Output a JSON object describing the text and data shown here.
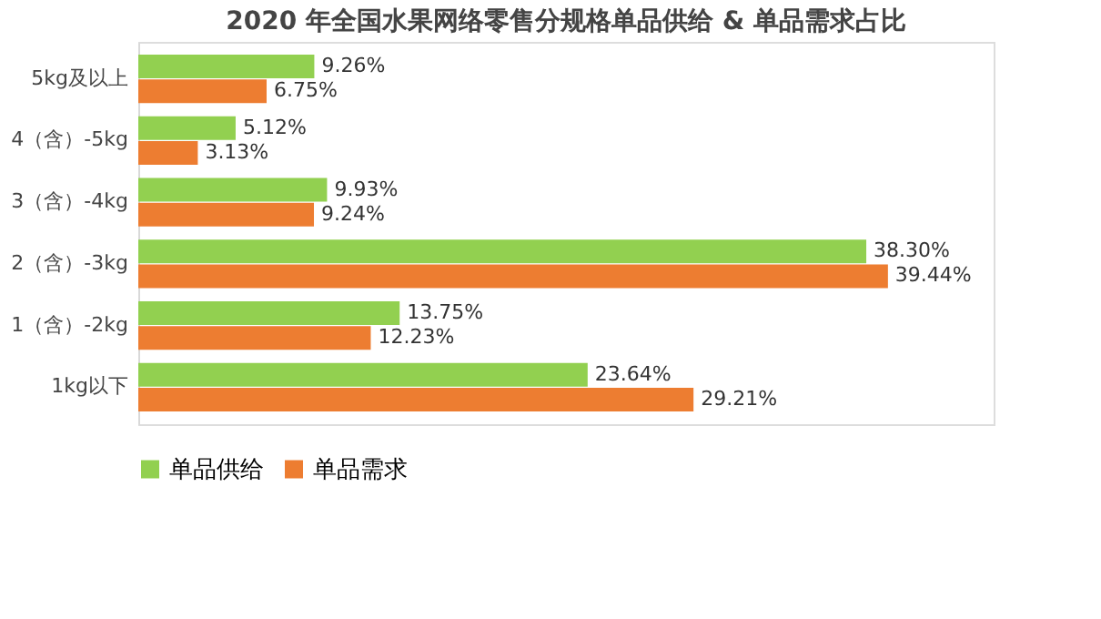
{
  "chart_data": {
    "type": "bar",
    "orientation": "horizontal",
    "title": "2020 年全国水果网络零售分规格单品供给 & 单品需求占比",
    "categories": [
      "5kg及以上",
      "4（含）-5kg",
      "3（含）-4kg",
      "2（含）-3kg",
      "1（含）-2kg",
      "1kg以下"
    ],
    "series": [
      {
        "name": "单品供给",
        "color": "#92d050",
        "values": [
          9.26,
          5.12,
          9.93,
          38.3,
          13.75,
          23.64
        ],
        "value_labels": [
          "9.26%",
          "5.12%",
          "9.93%",
          "38.30%",
          "13.75%",
          "23.64%"
        ]
      },
      {
        "name": "单品需求",
        "color": "#ed7d31",
        "values": [
          6.75,
          3.13,
          9.24,
          39.44,
          12.23,
          29.21
        ],
        "value_labels": [
          "6.75%",
          "3.13%",
          "9.24%",
          "39.44%",
          "12.23%",
          "29.21%"
        ]
      }
    ],
    "xlim": [
      0,
      45
    ],
    "tick_labels": "y",
    "grid": false,
    "legend": "bottom"
  }
}
